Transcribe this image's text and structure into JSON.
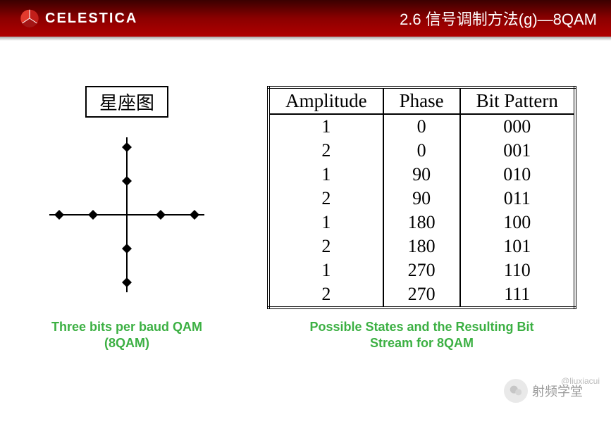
{
  "header": {
    "brand": "CELESTICA",
    "title": "2.6 信号调制方法(g)—8QAM",
    "bg_gradient": [
      "#3a0000",
      "#8b0000",
      "#b00000"
    ],
    "logo_color": "#d92222"
  },
  "constellation": {
    "box_label": "星座图",
    "caption_line1": "Three bits per baud QAM",
    "caption_line2": "(8QAM)",
    "axis_color": "#000000",
    "point_color": "#000000",
    "point_radius": 7,
    "points": [
      {
        "x": 0,
        "y": 48
      },
      {
        "x": 0,
        "y": 96
      },
      {
        "x": 0,
        "y": -48
      },
      {
        "x": 0,
        "y": -96
      },
      {
        "x": 48,
        "y": 0
      },
      {
        "x": 96,
        "y": 0
      },
      {
        "x": -48,
        "y": 0
      },
      {
        "x": -96,
        "y": 0
      }
    ],
    "axis_half_length": 110
  },
  "table": {
    "columns": [
      "Amplitude",
      "Phase",
      "Bit Pattern"
    ],
    "rows": [
      [
        "1",
        "0",
        "000"
      ],
      [
        "2",
        "0",
        "001"
      ],
      [
        "1",
        "90",
        "010"
      ],
      [
        "2",
        "90",
        "011"
      ],
      [
        "1",
        "180",
        "100"
      ],
      [
        "2",
        "180",
        "101"
      ],
      [
        "1",
        "270",
        "110"
      ],
      [
        "2",
        "270",
        "111"
      ]
    ],
    "caption_line1": "Possible States and the Resulting Bit",
    "caption_line2": "Stream for 8QAM",
    "caption_color": "#3cb043",
    "header_fontsize": 27,
    "cell_fontsize": 26
  },
  "watermark": {
    "handle": "@liuxiacui",
    "channel": "射频学堂"
  }
}
